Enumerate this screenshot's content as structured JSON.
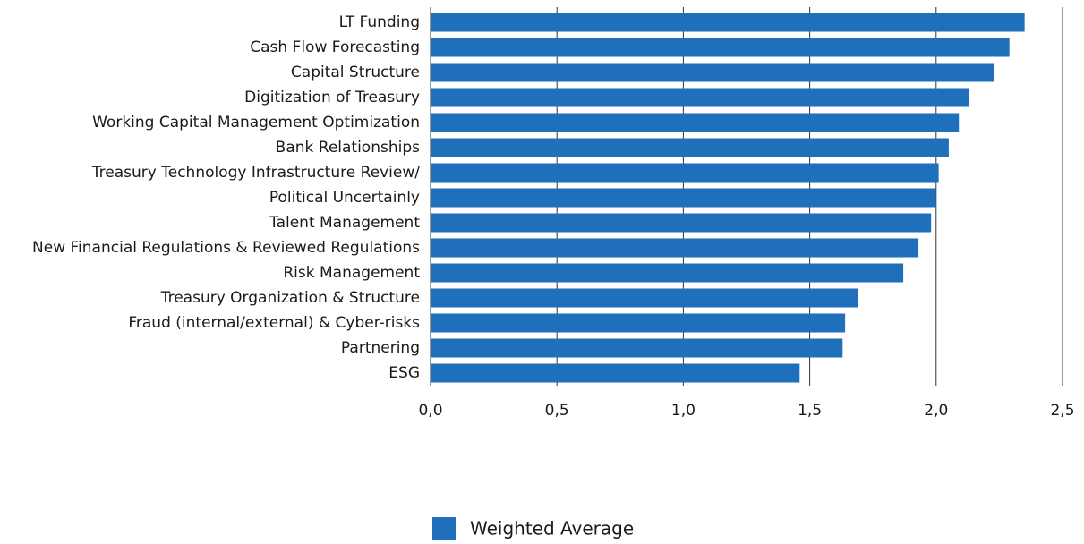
{
  "chart_data": {
    "type": "hbar",
    "categories": [
      "LT Funding",
      "Cash Flow Forecasting",
      "Capital Structure",
      "Digitization of Treasury",
      "Working Capital Management Optimization",
      "Bank Relationships",
      "Treasury Technology Infrastructure Review/",
      "Political Uncertainly",
      "Talent Management",
      "New Financial Regulations & Reviewed Regulations",
      "Risk Management",
      "Treasury Organization & Structure",
      "Fraud (internal/external) & Cyber-risks",
      "Partnering",
      "ESG"
    ],
    "series": [
      {
        "name": "Weighted Average",
        "color": "#1f6fba",
        "values": [
          2.35,
          2.29,
          2.23,
          2.13,
          2.09,
          2.05,
          2.01,
          2.0,
          1.98,
          1.93,
          1.87,
          1.69,
          1.64,
          1.63,
          1.46
        ]
      }
    ],
    "xlim": [
      0,
      2.5
    ],
    "xticks": [
      {
        "value": 0,
        "label": "0,0"
      },
      {
        "value": 0.5,
        "label": "0,5"
      },
      {
        "value": 1,
        "label": "1,0"
      },
      {
        "value": 1.5,
        "label": "1,5"
      },
      {
        "value": 2,
        "label": "2,0"
      },
      {
        "value": 2.5,
        "label": "2,5"
      }
    ],
    "grid": true,
    "legend": "bottom"
  }
}
